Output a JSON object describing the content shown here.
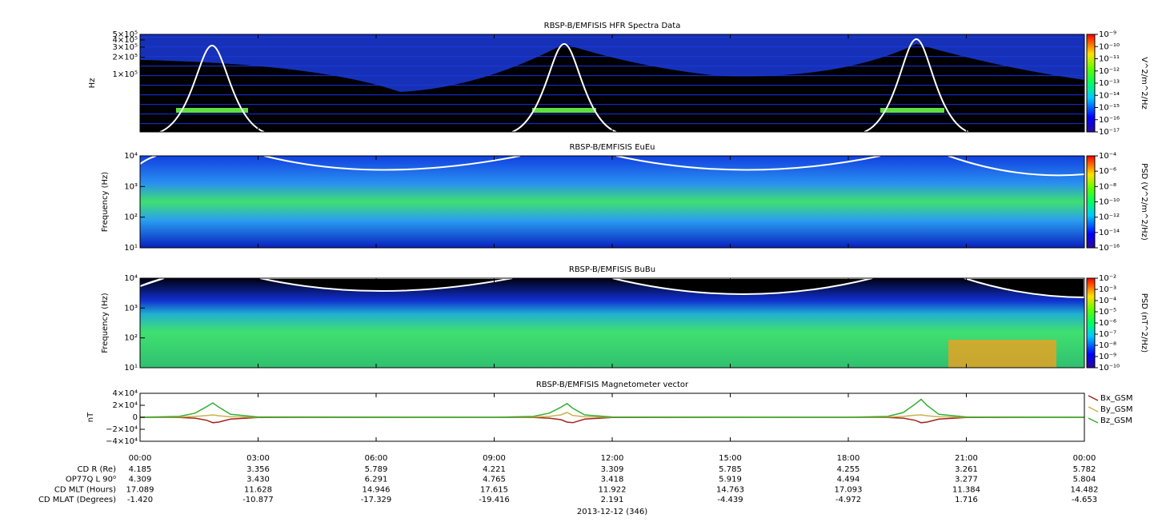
{
  "chart_data": [
    {
      "type": "spectrogram",
      "title": "RBSP-B/EMFISIS  HFR Spectra Data",
      "ylabel": "Hz",
      "yscale": "log",
      "ylim": [
        10000,
        500000
      ],
      "yticks": [
        {
          "value": 500000,
          "label": "5×10⁵"
        },
        {
          "value": 400000,
          "label": "4×10⁵"
        },
        {
          "value": 300000,
          "label": "3×10⁵"
        },
        {
          "value": 200000,
          "label": "2×10⁵"
        },
        {
          "value": 100000,
          "label": "1×10⁵"
        }
      ],
      "colorbar": {
        "label": "V^2/m^2/Hz",
        "scale": "log",
        "lim": [
          1e-17,
          1e-09
        ],
        "ticks": [
          {
            "value": 1e-09,
            "label": "10⁻⁹"
          },
          {
            "value": 1e-10,
            "label": "10⁻¹⁰"
          },
          {
            "value": 1e-11,
            "label": "10⁻¹¹"
          },
          {
            "value": 1e-12,
            "label": "10⁻¹²"
          },
          {
            "value": 1e-13,
            "label": "10⁻¹³"
          },
          {
            "value": 1e-14,
            "label": "10⁻¹⁴"
          },
          {
            "value": 1e-15,
            "label": "10⁻¹⁵"
          },
          {
            "value": 1e-16,
            "label": "10⁻¹⁶"
          },
          {
            "value": 1e-17,
            "label": "10⁻¹⁷"
          }
        ]
      }
    },
    {
      "type": "spectrogram",
      "title": "RBSP-B/EMFISIS  EuEu",
      "ylabel": "Frequency (Hz)",
      "yscale": "log",
      "ylim": [
        10,
        10000
      ],
      "yticks": [
        {
          "value": 10000,
          "label": "10⁴"
        },
        {
          "value": 1000,
          "label": "10³"
        },
        {
          "value": 100,
          "label": "10²"
        },
        {
          "value": 10,
          "label": "10¹"
        }
      ],
      "colorbar": {
        "label": "PSD (V^2/m^2/Hz)",
        "scale": "log",
        "lim": [
          1e-16,
          0.0001
        ],
        "ticks": [
          {
            "value": 0.0001,
            "label": "10⁻⁴"
          },
          {
            "value": 1e-06,
            "label": "10⁻⁶"
          },
          {
            "value": 1e-08,
            "label": "10⁻⁸"
          },
          {
            "value": 1e-10,
            "label": "10⁻¹⁰"
          },
          {
            "value": 1e-12,
            "label": "10⁻¹²"
          },
          {
            "value": 1e-14,
            "label": "10⁻¹⁴"
          },
          {
            "value": 1e-16,
            "label": "10⁻¹⁶"
          }
        ]
      }
    },
    {
      "type": "spectrogram",
      "title": "RBSP-B/EMFISIS  BuBu",
      "ylabel": "Frequency (Hz)",
      "yscale": "log",
      "ylim": [
        10,
        10000
      ],
      "yticks": [
        {
          "value": 10000,
          "label": "10⁴"
        },
        {
          "value": 1000,
          "label": "10³"
        },
        {
          "value": 100,
          "label": "10²"
        },
        {
          "value": 10,
          "label": "10¹"
        }
      ],
      "colorbar": {
        "label": "PSD (nT^2/Hz)",
        "scale": "log",
        "lim": [
          1e-10,
          0.01
        ],
        "ticks": [
          {
            "value": 0.01,
            "label": "10⁻²"
          },
          {
            "value": 0.001,
            "label": "10⁻³"
          },
          {
            "value": 0.0001,
            "label": "10⁻⁴"
          },
          {
            "value": 1e-05,
            "label": "10⁻⁵"
          },
          {
            "value": 1e-06,
            "label": "10⁻⁶"
          },
          {
            "value": 1e-07,
            "label": "10⁻⁷"
          },
          {
            "value": 1e-08,
            "label": "10⁻⁸"
          },
          {
            "value": 1e-09,
            "label": "10⁻⁹"
          },
          {
            "value": 1e-10,
            "label": "10⁻¹⁰"
          }
        ]
      }
    },
    {
      "type": "line",
      "title": "RBSP-B/EMFISIS  Magnetometer vector",
      "ylabel": "nT",
      "yscale": "linear",
      "ylim": [
        -40000,
        40000
      ],
      "yticks": [
        {
          "value": 40000,
          "label": "4×10⁴"
        },
        {
          "value": 20000,
          "label": "2×10⁴"
        },
        0,
        {
          "value": -20000,
          "label": "−2×10⁴"
        },
        {
          "value": -40000,
          "label": "−4×10⁴"
        }
      ],
      "x": [
        0,
        1,
        1.4,
        1.7,
        1.85,
        2.0,
        2.3,
        3,
        9,
        10,
        10.4,
        10.7,
        10.85,
        11.0,
        11.3,
        12,
        18,
        19,
        19.4,
        19.7,
        19.85,
        20.0,
        20.3,
        21,
        24
      ],
      "series": [
        {
          "name": "Bx_GSM",
          "color": "#a3241c",
          "values": [
            0,
            -300,
            -1500,
            -5000,
            -9000,
            -8000,
            -3000,
            -300,
            0,
            -300,
            -1500,
            -4000,
            -8000,
            -9000,
            -3000,
            -300,
            0,
            -300,
            -1500,
            -5000,
            -9000,
            -8000,
            -3000,
            -300,
            0
          ]
        },
        {
          "name": "By_GSM",
          "color": "#c9b24a",
          "values": [
            0,
            300,
            1500,
            3000,
            4000,
            2500,
            800,
            100,
            0,
            300,
            1500,
            4000,
            8000,
            3000,
            800,
            100,
            0,
            300,
            1500,
            3500,
            4000,
            2500,
            800,
            100,
            0
          ]
        },
        {
          "name": "Bz_GSM",
          "color": "#33b032",
          "values": [
            0,
            1500,
            7000,
            18000,
            24000,
            17000,
            5000,
            500,
            0,
            1500,
            7000,
            17000,
            23000,
            15000,
            4000,
            500,
            0,
            1500,
            8000,
            22000,
            30000,
            20000,
            5000,
            500,
            0
          ]
        }
      ]
    }
  ],
  "x_axis": {
    "xlim": [
      0,
      24
    ],
    "xticks": [
      {
        "value": 0,
        "label": "00:00"
      },
      {
        "value": 3,
        "label": "03:00"
      },
      {
        "value": 6,
        "label": "06:00"
      },
      {
        "value": 9,
        "label": "09:00"
      },
      {
        "value": 12,
        "label": "12:00"
      },
      {
        "value": 15,
        "label": "15:00"
      },
      {
        "value": 18,
        "label": "18:00"
      },
      {
        "value": 21,
        "label": "21:00"
      },
      {
        "value": 24,
        "label": "00:00"
      }
    ],
    "ephemeris": [
      {
        "label": "CD R (Re)",
        "values": [
          "4.185",
          "3.356",
          "5.789",
          "4.221",
          "3.309",
          "5.785",
          "4.255",
          "3.261",
          "5.782"
        ]
      },
      {
        "label": "OP77Q L 90⁰",
        "values": [
          "4.309",
          "3.430",
          "6.291",
          "4.765",
          "3.418",
          "5.919",
          "4.494",
          "3.277",
          "5.804"
        ]
      },
      {
        "label": "CD MLT (Hours)",
        "values": [
          "17.089",
          "11.628",
          "14.946",
          "17.615",
          "11.922",
          "14.763",
          "17.093",
          "11.384",
          "14.482"
        ]
      },
      {
        "label": "CD MLAT (Degrees)",
        "values": [
          "-1.420",
          "-10.877",
          "-17.329",
          "-19.416",
          "2.191",
          "-4.439",
          "-4.972",
          "1.716",
          "-4.653"
        ]
      }
    ],
    "date": "2013-12-12 (346)"
  }
}
